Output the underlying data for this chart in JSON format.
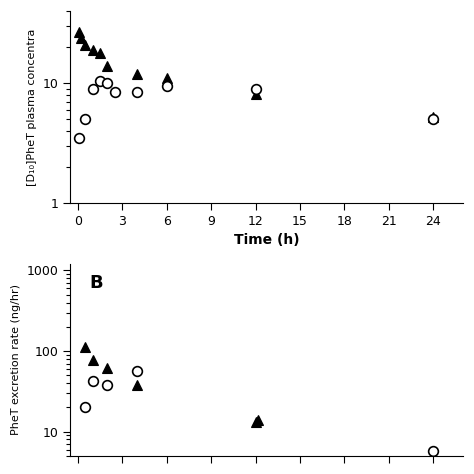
{
  "panel_A": {
    "ylabel": "[D₁₀]PheT plasma concentra",
    "xlabel": "Time (h)",
    "xlim": [
      -0.5,
      26
    ],
    "ylim": [
      1,
      40
    ],
    "xticks": [
      0,
      3,
      6,
      9,
      12,
      15,
      18,
      21,
      24
    ],
    "triangles_x": [
      0.1,
      0.25,
      0.5,
      1.0,
      1.5,
      2.0,
      4.0,
      6.0,
      12.0,
      24.0
    ],
    "triangles_y": [
      27,
      24,
      21,
      19,
      18,
      14,
      12,
      11,
      8.2,
      5.2
    ],
    "circles_x": [
      0.1,
      0.5,
      1.0,
      1.5,
      2.0,
      2.5,
      4.0,
      6.0,
      12.0,
      24.0
    ],
    "circles_y": [
      3.5,
      5.0,
      9.0,
      10.5,
      10.0,
      8.5,
      8.5,
      9.5,
      9.0,
      5.0
    ]
  },
  "panel_B": {
    "ylabel": "PheT excretion rate (ng/hr)",
    "xlabel": "",
    "xlim": [
      -0.5,
      26
    ],
    "ylim": [
      5,
      1200
    ],
    "xticks": [
      0,
      3,
      6,
      9,
      12,
      15,
      18,
      21,
      24
    ],
    "label_B": "B",
    "triangles_x": [
      0.5,
      1.0,
      2.0,
      4.0,
      12.0,
      12.2
    ],
    "triangles_y": [
      112,
      78,
      62,
      38,
      13,
      14
    ],
    "circles_x": [
      0.5,
      1.0,
      2.0,
      4.0,
      24.0
    ],
    "circles_y": [
      20,
      42,
      38,
      57,
      5.8
    ]
  },
  "marker_size": 7,
  "triangle_color": "black",
  "circle_facecolor": "white",
  "circle_edgecolor": "black",
  "linewidth": 1.0
}
